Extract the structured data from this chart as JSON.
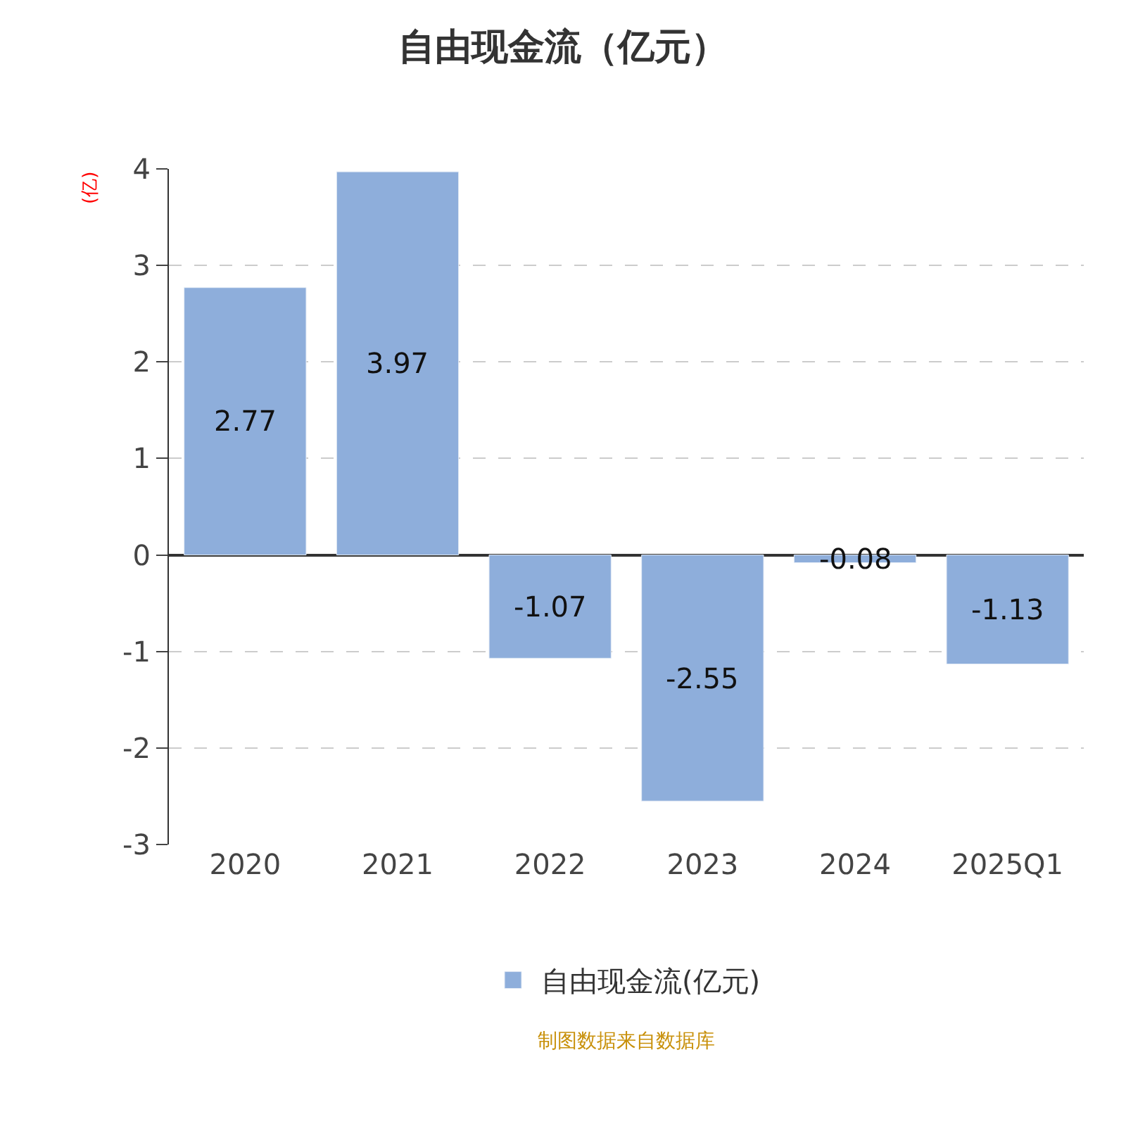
{
  "chart_data": {
    "type": "bar",
    "title": "自由现金流（亿元）",
    "ylabel": "(亿)",
    "categories": [
      "2020",
      "2021",
      "2022",
      "2023",
      "2024",
      "2025Q1"
    ],
    "series": [
      {
        "name": "自由现金流(亿元)",
        "color": "#8eaedb",
        "values": [
          2.77,
          3.97,
          -1.07,
          -2.55,
          -0.08,
          -1.13
        ]
      }
    ],
    "ylim": [
      -3,
      4
    ],
    "yticks": [
      -3,
      -2,
      -1,
      0,
      1,
      2,
      3,
      4
    ],
    "grid": "y",
    "legend": "bottom",
    "data_labels": true,
    "annotations": [
      "制图数据来自数据库"
    ]
  }
}
